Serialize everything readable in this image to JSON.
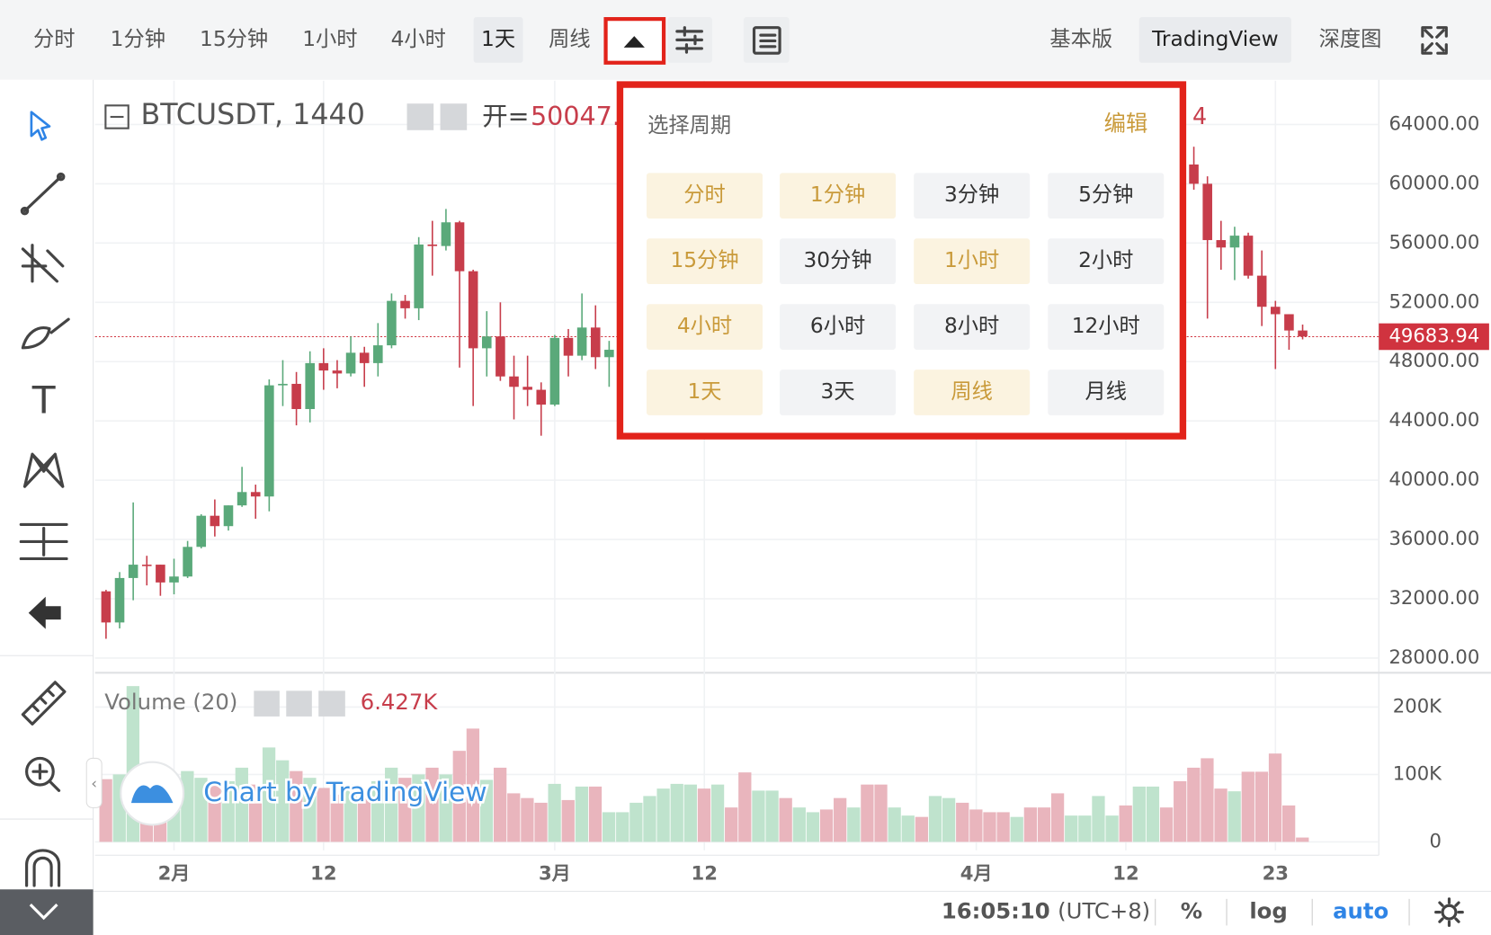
{
  "toolbar": {
    "left": [
      {
        "label": "分时",
        "selected": false
      },
      {
        "label": "1分钟",
        "selected": false
      },
      {
        "label": "15分钟",
        "selected": false
      },
      {
        "label": "1小时",
        "selected": false
      },
      {
        "label": "4小时",
        "selected": false
      },
      {
        "label": "1天",
        "selected": true
      },
      {
        "label": "周线",
        "selected": false
      }
    ],
    "right": [
      {
        "label": "基本版",
        "selected": false
      },
      {
        "label": "TradingView",
        "selected": true
      },
      {
        "label": "深度图",
        "selected": false
      }
    ]
  },
  "chart_data": {
    "type": "candlestick",
    "symbol": "BTCUSDT, 1440",
    "legend_open_label": "开=",
    "legend_open_value": "50047.",
    "legend_tail": "4",
    "colors": {
      "up": "#5aa97a",
      "down": "#c73d4b",
      "last_price": "#d0333f"
    },
    "grid": true,
    "ylim": [
      27200,
      66950
    ],
    "yticks": [
      {
        "value": 28000,
        "label": "28000.00"
      },
      {
        "value": 32000,
        "label": "32000.00"
      },
      {
        "value": 36000,
        "label": "36000.00"
      },
      {
        "value": 40000,
        "label": "40000.00"
      },
      {
        "value": 44000,
        "label": "44000.00"
      },
      {
        "value": 48000,
        "label": "48000.00"
      },
      {
        "value": 52000,
        "label": "52000.00"
      },
      {
        "value": 56000,
        "label": "56000.00"
      },
      {
        "value": 60000,
        "label": "60000.00"
      },
      {
        "value": 64000,
        "label": "64000.00"
      }
    ],
    "last_price": 49683.94,
    "xticks": [
      {
        "value": 5,
        "label": "2月"
      },
      {
        "value": 16,
        "label": "12"
      },
      {
        "value": 33,
        "label": "3月"
      },
      {
        "value": 44,
        "label": "12"
      },
      {
        "value": 64,
        "label": "4月"
      },
      {
        "value": 75,
        "label": "12"
      },
      {
        "value": 86,
        "label": "23"
      }
    ],
    "candles": [
      [
        32500,
        32600,
        29300,
        30400
      ],
      [
        30400,
        33800,
        30000,
        33400
      ],
      [
        33400,
        38500,
        31900,
        34300
      ],
      [
        34300,
        34900,
        32900,
        34250
      ],
      [
        34300,
        34300,
        32200,
        33100
      ],
      [
        33100,
        34700,
        32300,
        33500
      ],
      [
        33500,
        35900,
        33400,
        35500
      ],
      [
        35500,
        37700,
        35400,
        37600
      ],
      [
        37600,
        38700,
        36200,
        36900
      ],
      [
        36900,
        38300,
        36600,
        38300
      ],
      [
        38300,
        40900,
        38200,
        39200
      ],
      [
        39200,
        39700,
        37400,
        38900
      ],
      [
        38900,
        46800,
        37900,
        46400
      ],
      [
        46400,
        48100,
        45000,
        46500
      ],
      [
        46500,
        47300,
        43700,
        44800
      ],
      [
        44800,
        48700,
        43900,
        47900
      ],
      [
        47900,
        48900,
        46100,
        47400
      ],
      [
        47400,
        48100,
        46200,
        47200
      ],
      [
        47200,
        49700,
        47000,
        48600
      ],
      [
        48600,
        49000,
        46300,
        47900
      ],
      [
        47900,
        50600,
        47000,
        49100
      ],
      [
        49100,
        52600,
        48900,
        52100
      ],
      [
        52100,
        52500,
        50900,
        51600
      ],
      [
        51600,
        56400,
        50800,
        55900
      ],
      [
        55900,
        57500,
        53800,
        55800
      ],
      [
        55800,
        58300,
        55500,
        57400
      ],
      [
        57400,
        57500,
        47600,
        54100
      ],
      [
        54100,
        54200,
        45000,
        48900
      ],
      [
        48900,
        51400,
        47000,
        49700
      ],
      [
        49700,
        52000,
        46700,
        47000
      ],
      [
        47000,
        48400,
        44100,
        46300
      ],
      [
        46300,
        48400,
        45000,
        46100
      ],
      [
        46100,
        46600,
        43000,
        45100
      ],
      [
        45100,
        49800,
        45000,
        49600
      ],
      [
        49600,
        50200,
        47000,
        48400
      ],
      [
        48400,
        52600,
        48100,
        50300
      ],
      [
        50300,
        51800,
        47500,
        48300
      ],
      [
        48300,
        49400,
        46300,
        48800
      ],
      null,
      null,
      null,
      null,
      null,
      null,
      null,
      null,
      null,
      null,
      null,
      null,
      null,
      null,
      null,
      null,
      null,
      null,
      null,
      null,
      null,
      null,
      null,
      null,
      null,
      null,
      null,
      null,
      null,
      null,
      null,
      null,
      null,
      null,
      null,
      null,
      null,
      null,
      null,
      null,
      null,
      null,
      [
        61300,
        62500,
        59600,
        60000
      ],
      [
        60000,
        60500,
        50900,
        56200
      ],
      [
        56200,
        57500,
        54200,
        55700
      ],
      [
        55700,
        57100,
        53500,
        56500
      ],
      [
        56500,
        56700,
        53600,
        53800
      ],
      [
        53800,
        55500,
        50400,
        51700
      ],
      [
        51700,
        52100,
        47500,
        51200
      ],
      [
        51200,
        51200,
        48800,
        50100
      ],
      [
        50100,
        50500,
        49500,
        49700
      ]
    ],
    "volume": {
      "title": "Volume (20)",
      "value": 6427,
      "value_label": "6.427K",
      "ylim": [
        -12700,
        248000
      ],
      "yticks": [
        0,
        {
          "value": 100000,
          "label": "100K"
        },
        {
          "value": 200000,
          "label": "200K"
        }
      ],
      "values": [
        93000,
        100000,
        231000,
        90000,
        80000,
        95000,
        105000,
        95000,
        85000,
        90000,
        110000,
        85000,
        140000,
        121000,
        105000,
        95000,
        80000,
        70000,
        85000,
        75000,
        90000,
        110000,
        95000,
        100000,
        110000,
        100000,
        135000,
        168000,
        92000,
        110000,
        72000,
        65000,
        58000,
        86000,
        62000,
        82000,
        82000,
        44000,
        44000,
        58000,
        68000,
        79000,
        86000,
        85000,
        79000,
        85000,
        51000,
        103000,
        76000,
        76000,
        65000,
        51000,
        44000,
        48000,
        65000,
        51000,
        85000,
        85000,
        51000,
        39000,
        37000,
        68000,
        65000,
        58000,
        48000,
        44000,
        44000,
        37000,
        51000,
        51000,
        72000,
        39000,
        39000,
        68000,
        39000,
        54000,
        82000,
        82000,
        51000,
        90000,
        110000,
        124000,
        79000,
        75000,
        104000,
        104000,
        131000,
        54000,
        6427
      ],
      "colors": [
        "#e9b5bd",
        "#bfe3cd",
        "#bfe3cd",
        "#e9b5bd",
        "#e9b5bd",
        "#bfe3cd",
        "#bfe3cd",
        "#bfe3cd",
        "#e9b5bd",
        "#bfe3cd",
        "#bfe3cd",
        "#e9b5bd",
        "#bfe3cd",
        "#bfe3cd",
        "#e9b5bd",
        "#bfe3cd",
        "#e9b5bd",
        "#e9b5bd",
        "#bfe3cd",
        "#e9b5bd",
        "#bfe3cd",
        "#bfe3cd",
        "#e9b5bd",
        "#bfe3cd",
        "#e9b5bd",
        "#bfe3cd",
        "#e9b5bd",
        "#e9b5bd",
        "#bfe3cd",
        "#e9b5bd",
        "#e9b5bd",
        "#e9b5bd",
        "#e9b5bd",
        "#bfe3cd",
        "#e9b5bd",
        "#bfe3cd",
        "#e9b5bd",
        "#bfe3cd",
        "#bfe3cd",
        "#bfe3cd",
        "#bfe3cd",
        "#bfe3cd",
        "#bfe3cd",
        "#bfe3cd",
        "#e9b5bd",
        "#bfe3cd",
        "#e9b5bd",
        "#e9b5bd",
        "#bfe3cd",
        "#bfe3cd",
        "#e9b5bd",
        "#bfe3cd",
        "#bfe3cd",
        "#e9b5bd",
        "#e9b5bd",
        "#bfe3cd",
        "#e9b5bd",
        "#e9b5bd",
        "#bfe3cd",
        "#bfe3cd",
        "#e9b5bd",
        "#bfe3cd",
        "#bfe3cd",
        "#e9b5bd",
        "#e9b5bd",
        "#e9b5bd",
        "#e9b5bd",
        "#bfe3cd",
        "#e9b5bd",
        "#e9b5bd",
        "#e9b5bd",
        "#bfe3cd",
        "#bfe3cd",
        "#bfe3cd",
        "#bfe3cd",
        "#e9b5bd",
        "#bfe3cd",
        "#bfe3cd",
        "#e9b5bd",
        "#e9b5bd",
        "#e9b5bd",
        "#e9b5bd",
        "#e9b5bd",
        "#bfe3cd",
        "#e9b5bd",
        "#e9b5bd",
        "#e9b5bd",
        "#e9b5bd",
        "#e9b5bd"
      ]
    },
    "watermark": "Chart by TradingView"
  },
  "popup": {
    "title": "选择周期",
    "edit": "编辑",
    "items": [
      {
        "label": "分时",
        "highlighted": true
      },
      {
        "label": "1分钟",
        "highlighted": true
      },
      {
        "label": "3分钟",
        "highlighted": false
      },
      {
        "label": "5分钟",
        "highlighted": false
      },
      {
        "label": "15分钟",
        "highlighted": true
      },
      {
        "label": "30分钟",
        "highlighted": false
      },
      {
        "label": "1小时",
        "highlighted": true
      },
      {
        "label": "2小时",
        "highlighted": false
      },
      {
        "label": "4小时",
        "highlighted": true
      },
      {
        "label": "6小时",
        "highlighted": false
      },
      {
        "label": "8小时",
        "highlighted": false
      },
      {
        "label": "12小时",
        "highlighted": false
      },
      {
        "label": "1天",
        "highlighted": true
      },
      {
        "label": "3天",
        "highlighted": false
      },
      {
        "label": "周线",
        "highlighted": true
      },
      {
        "label": "月线",
        "highlighted": false
      }
    ]
  },
  "footer": {
    "time": "16:05:10",
    "timezone": "(UTC+8)",
    "percent": "%",
    "log": "log",
    "auto": "auto"
  }
}
